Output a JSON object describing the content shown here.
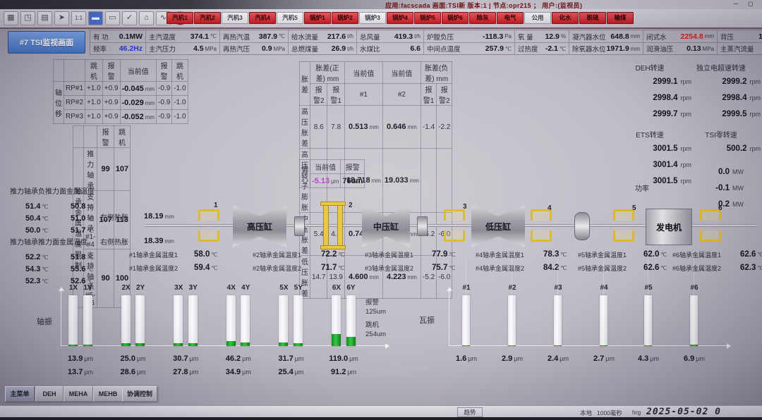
{
  "window": {
    "app_info": "应用:facscada  画面:TSI新  版本:1 | 节点:opr215 ； 用户:(监视员)",
    "minimize_glyph": "─",
    "maximize_glyph": "◻"
  },
  "title": "#7 TSI监视画面",
  "toolbar": {
    "icons": [
      {
        "name": "grid-icon",
        "glyph": "▦"
      },
      {
        "name": "fit-screen-icon",
        "glyph": "◳"
      },
      {
        "name": "print-icon",
        "glyph": "▤"
      },
      {
        "name": "pointer-icon",
        "glyph": "➤"
      },
      {
        "name": "one-to-one-icon",
        "glyph": "1:1"
      },
      {
        "name": "tag-blue-icon",
        "glyph": "▬"
      },
      {
        "name": "tag-gray-icon",
        "glyph": "▭"
      },
      {
        "name": "confirm-icon",
        "glyph": "✓"
      },
      {
        "name": "home-icon",
        "glyph": "⌂"
      },
      {
        "name": "trend-icon",
        "glyph": "∿"
      },
      {
        "name": "alarm-icon",
        "glyph": "!"
      }
    ],
    "nav_buttons": [
      {
        "label": "汽机1",
        "active": true
      },
      {
        "label": "汽机2",
        "active": true
      },
      {
        "label": "汽机3",
        "active": false
      },
      {
        "label": "汽机4",
        "active": true
      },
      {
        "label": "汽机5",
        "active": false
      },
      {
        "label": "锅炉1",
        "active": true
      },
      {
        "label": "锅炉2",
        "active": true
      },
      {
        "label": "锅炉3",
        "active": false
      },
      {
        "label": "锅炉4",
        "active": true
      },
      {
        "label": "锅炉5",
        "active": true
      },
      {
        "label": "锅炉6",
        "active": true
      },
      {
        "label": "除灰",
        "active": true
      },
      {
        "label": "电气",
        "active": true
      },
      {
        "label": "公用",
        "active": false
      },
      {
        "label": "化水",
        "active": true
      },
      {
        "label": "脱硫",
        "active": true
      },
      {
        "label": "输煤",
        "active": true
      }
    ]
  },
  "kpis": [
    {
      "top": {
        "label": "有 功",
        "value": "0.1MW",
        "unit": ""
      },
      "bottom": {
        "label": "频率",
        "value": "46.2Hz",
        "unit": "",
        "color": "#2438c8"
      }
    },
    {
      "top": {
        "label": "主汽温度",
        "value": "374.1",
        "unit": "℃"
      },
      "bottom": {
        "label": "主汽压力",
        "value": "4.5",
        "unit": "MPa"
      }
    },
    {
      "top": {
        "label": "再热汽温",
        "value": "387.9",
        "unit": "℃"
      },
      "bottom": {
        "label": "再热汽压",
        "value": "0.9",
        "unit": "MPa"
      }
    },
    {
      "top": {
        "label": "给水流量",
        "value": "217.6",
        "unit": "t/h"
      },
      "bottom": {
        "label": "总燃煤量",
        "value": "26.9",
        "unit": "t/h"
      }
    },
    {
      "top": {
        "label": "总风量",
        "value": "419.3",
        "unit": "t/h"
      },
      "bottom": {
        "label": "水煤比",
        "value": "6.6",
        "unit": ""
      }
    },
    {
      "top": {
        "label": "炉膛负压",
        "value": "-118.3",
        "unit": "Pa"
      },
      "bottom": {
        "label": "中间点温度",
        "value": "257.9",
        "unit": "℃"
      }
    },
    {
      "top": {
        "label": "氧 量",
        "value": "12.9",
        "unit": "%"
      },
      "bottom": {
        "label": "过热度",
        "value": "-2.1",
        "unit": "℃"
      }
    },
    {
      "top": {
        "label": "凝汽器水位",
        "value": "648.8",
        "unit": "mm"
      },
      "bottom": {
        "label": "除氧器水位",
        "value": "1971.9",
        "unit": "mm"
      }
    },
    {
      "top": {
        "label": "闭式水",
        "value": "2254.8",
        "unit": "mm",
        "color": "#d01f1f"
      },
      "bottom": {
        "label": "润滑油压",
        "value": "0.13",
        "unit": "MPa"
      }
    },
    {
      "top": {
        "label": "背压",
        "value": "14.127",
        "unit": "kPa"
      },
      "bottom": {
        "label": "主蒸汽流量",
        "value": "199.5",
        "unit": ""
      }
    }
  ],
  "tables": {
    "axial": {
      "group": "轴位移",
      "headers": [
        "跳机",
        "报警",
        "当前值",
        "报警",
        "跳机"
      ],
      "unit": "mm",
      "rows": [
        [
          "RP#1",
          "+1.0",
          "+0.9",
          "-0.045",
          "-0.9",
          "-1.0"
        ],
        [
          "RP#2",
          "+1.0",
          "+0.9",
          "-0.029",
          "-0.9",
          "-1.0"
        ],
        [
          "RP#3",
          "+1.0",
          "+0.9",
          "-0.052",
          "-0.9",
          "-1.0"
        ]
      ]
    },
    "temp_limits": {
      "group": "轴承金属温度限制",
      "headers": [
        "报警",
        "跳机"
      ],
      "rows": [
        [
          "推力轴承",
          "99",
          "107"
        ],
        [
          "支持轴承#1-#4",
          "107",
          "113"
        ],
        [
          "支持轴承#5-#6",
          "90",
          "100"
        ]
      ]
    },
    "expansion": {
      "group": "胀差",
      "pos_header": "胀差(正差) mm",
      "cur_header": "当前值",
      "neg_header": "胀差(负差) mm",
      "sub": [
        "报警2",
        "报警1",
        "#1",
        "#2",
        "报警1",
        "报警2"
      ],
      "unit": "mm",
      "rows": [
        [
          "高压胀差",
          "8.6",
          "7.8",
          "0.513",
          "0.646",
          "-1.4",
          "-2.2"
        ],
        [
          "高压转子膨胀",
          "",
          "",
          "18.718",
          "19.033",
          "",
          ""
        ],
        [
          "中压胀差",
          "5.4",
          "4.6",
          "0.741",
          "0.662",
          "-5.2",
          "-6.0"
        ],
        [
          "低压胀差",
          "14.7",
          "13.9",
          "4.600",
          "4.223",
          "-5.2",
          "-6.0"
        ]
      ]
    },
    "eccentricity": {
      "group": "偏心",
      "cur_header": "当前值",
      "alarm_header": "报警",
      "value": "-5.13",
      "unit": "μm",
      "value_color": "#b43cc8",
      "alarm": "76um"
    }
  },
  "speeds": {
    "deh": {
      "title": "DEH转速",
      "values": [
        "2999.1",
        "2998.4",
        "2999.7"
      ],
      "unit": "rpm"
    },
    "overspeed": {
      "title": "独立电超速转速",
      "values": [
        "2999.2",
        "2998.4",
        "2999.5"
      ],
      "unit": "rpm"
    },
    "ets": {
      "title": "ETS转速",
      "values": [
        "3001.5",
        "3001.4",
        "3001.5"
      ],
      "unit": "rpm"
    },
    "tsi_zero": {
      "title": "TSI零转速",
      "values": [
        "500.2"
      ],
      "unit": "rpm"
    },
    "power": {
      "title": "功率",
      "values": [
        "0.0",
        "-0.1",
        "0.2"
      ],
      "unit": "MW"
    }
  },
  "thrust": {
    "neg_title": "推力轴承负推力面金属温度",
    "neg_temps": [
      [
        "51.4",
        "50.8"
      ],
      [
        "50.4",
        "51.0"
      ],
      [
        "50.0",
        "51.7"
      ]
    ],
    "pos_title": "推力轴承推力面金属温度",
    "pos_temps": [
      [
        "52.2",
        "51.8"
      ],
      [
        "54.3",
        "55.6"
      ],
      [
        "52.3",
        "52.6"
      ]
    ],
    "temp_unit": "℃",
    "left_exp_label": "左侧热胀",
    "left_exp": "18.19",
    "right_exp_label": "右侧热胀",
    "right_exp": "18.39",
    "exp_unit": "mm"
  },
  "diagram": {
    "cylinders": [
      "高压缸",
      "中压缸",
      "低压缸",
      "发电机"
    ],
    "bearing_numbers": [
      "1",
      "2",
      "3",
      "4",
      "5",
      "6"
    ],
    "temp_unit": "℃",
    "bearing_temps": [
      {
        "label1": "#1轴承金属温度1",
        "label2": "#1轴承金属温度2",
        "t1": "58.0",
        "t2": "59.4"
      },
      {
        "label1": "#2轴承金属温度1",
        "label2": "#2轴承金属温度2",
        "t1": "72.2",
        "t2": "71.7"
      },
      {
        "label1": "#3轴承金属温度1",
        "label2": "#3轴承金属温度2",
        "t1": "77.9",
        "t2": "75.7"
      },
      {
        "label1": "#4轴承金属温度1",
        "label2": "#4轴承金属温度2",
        "t1": "78.3",
        "t2": "84.2"
      },
      {
        "label1": "#5轴承金属温度1",
        "label2": "#5轴承金属温度2",
        "t1": "62.0",
        "t2": "62.6"
      },
      {
        "label1": "#6轴承金属温度1",
        "label2": "#6轴承金属温度2",
        "t1": "62.6",
        "t2": "62.3"
      }
    ]
  },
  "chart_data": [
    {
      "type": "bar",
      "name": "轴振",
      "categories": [
        "1X",
        "1Y",
        "2X",
        "2Y",
        "3X",
        "3Y",
        "4X",
        "4Y",
        "5X",
        "5Y",
        "6X",
        "6Y"
      ],
      "values": [
        13.9,
        13.7,
        25.0,
        28.6,
        30.7,
        27.8,
        46.2,
        34.9,
        31.7,
        25.4,
        119.0,
        91.2
      ],
      "unit": "μm",
      "ylim": [
        0,
        500
      ],
      "annotations": [
        "报警",
        "125um",
        "跳机",
        "254um"
      ],
      "bar_color": "#f4f2f5",
      "fill_color": "#1faa32"
    },
    {
      "type": "bar",
      "name": "瓦振",
      "categories": [
        "#1",
        "#2",
        "#3",
        "#4",
        "#5",
        "#6"
      ],
      "values": [
        1.6,
        2.9,
        2.4,
        2.7,
        4.3,
        6.9
      ],
      "unit": "μm",
      "ylim": [
        0,
        250
      ],
      "bar_color": "#f4f2f5",
      "fill_color": "#1faa32"
    }
  ],
  "bottom_nav": [
    "主菜单",
    "DEH",
    "MEHA",
    "MEHB",
    "协调控制"
  ],
  "statusbar": {
    "trend": "趋势",
    "mode": "本地",
    "refresh": "1000毫秒",
    "user": "hrg",
    "datetime": "2025-05-02 0"
  },
  "colors": {
    "accent_red": "#c8252c",
    "title_blue": "#4e86d2",
    "value_blue": "#2438c8",
    "value_red": "#d01f1f",
    "value_magenta": "#b43cc8",
    "bar_green": "#1faa32",
    "bearing_yellow": "#dcb72f"
  }
}
